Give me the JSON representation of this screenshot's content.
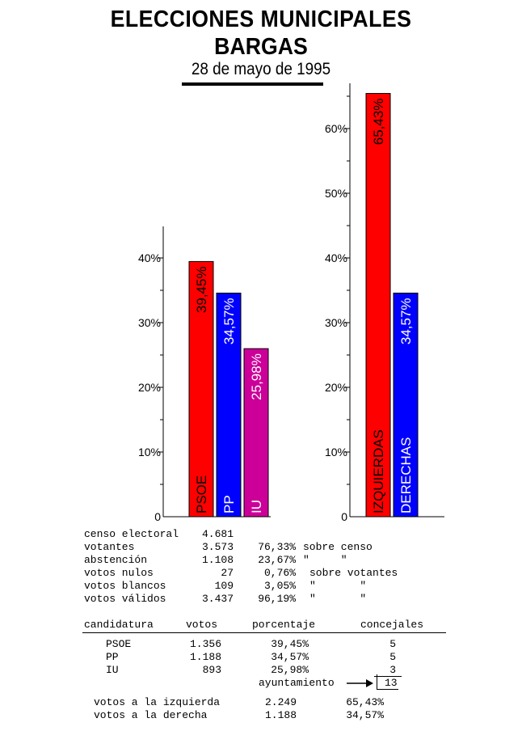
{
  "title": {
    "line1": "ELECCIONES  MUNICIPALES",
    "line2": "BARGAS",
    "line3": "28 de mayo de 1995"
  },
  "chart_data": [
    {
      "type": "bar",
      "categories": [
        "PSOE",
        "PP",
        "IU"
      ],
      "values": [
        39.45,
        34.57,
        25.98
      ],
      "value_labels": [
        "39,45%",
        "34,57%",
        "25,98%"
      ],
      "colors": [
        "#ff0000",
        "#0000ff",
        "#cc0099"
      ],
      "ylim": [
        0,
        45
      ],
      "yticks": [
        0,
        10,
        20,
        30,
        40
      ],
      "ytick_labels": [
        "0",
        "10%",
        "20%",
        "30%",
        "40%"
      ]
    },
    {
      "type": "bar",
      "categories": [
        "IZQUIERDAS",
        "DERECHAS"
      ],
      "values": [
        65.43,
        34.57
      ],
      "value_labels": [
        "65,43%",
        "34,57%"
      ],
      "colors": [
        "#ff0000",
        "#0000ff"
      ],
      "ylim": [
        0,
        66
      ],
      "yticks": [
        0,
        10,
        20,
        30,
        40,
        50,
        60
      ],
      "ytick_labels": [
        "0",
        "10%",
        "20%",
        "30%",
        "40%",
        "50%",
        "60%"
      ]
    }
  ],
  "stats": [
    {
      "label": "censo electoral",
      "value": "4.681",
      "pct": "",
      "note": ""
    },
    {
      "label": "votantes",
      "value": "3.573",
      "pct": "76,33%",
      "note": "sobre censo"
    },
    {
      "label": "abstención",
      "value": "1.108",
      "pct": "23,67%",
      "note": "\"     \""
    },
    {
      "label": "votos nulos",
      "value": "27",
      "pct": "0,76%",
      "note": "sobre votantes"
    },
    {
      "label": "votos blancos",
      "value": "109",
      "pct": "3,05%",
      "note": "\"       \""
    },
    {
      "label": "votos válidos",
      "value": "3.437",
      "pct": "96,19%",
      "note": "\"       \""
    }
  ],
  "results_table": {
    "headers": [
      "candidatura",
      "votos",
      "porcentaje",
      "concejales"
    ],
    "rows": [
      {
        "party": "PSOE",
        "votes": "1.356",
        "pct": "39,45%",
        "seats": "5"
      },
      {
        "party": "PP",
        "votes": "1.188",
        "pct": "34,57%",
        "seats": "5"
      },
      {
        "party": "IU",
        "votes": "893",
        "pct": "25,98%",
        "seats": "3"
      }
    ],
    "total_label": "ayuntamiento",
    "total_seats": "13"
  },
  "summary": [
    {
      "label": "votos a la izquierda",
      "votes": "2.249",
      "pct": "65,43%"
    },
    {
      "label": "votos a la derecha",
      "votes": "1.188",
      "pct": "34,57%"
    }
  ]
}
